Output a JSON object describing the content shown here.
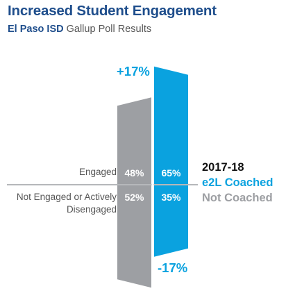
{
  "title": "Increased Student Engagement",
  "subtitle_bold": "El Paso ISD",
  "subtitle_rest": " Gallup Poll Results",
  "colors": {
    "title": "#1f4e8c",
    "coached": "#0aa2df",
    "not_coached": "#9d9fa3",
    "label_text": "#555555",
    "legend_year": "#111111"
  },
  "legend": {
    "year": "2017-18",
    "coached": "e2L Coached",
    "not_coached": "Not Coached"
  },
  "deltas": {
    "top": "+17%",
    "bottom": "-17%"
  },
  "chart_data": {
    "type": "bar",
    "title": "Increased Student Engagement",
    "subtitle": "El Paso ISD Gallup Poll Results",
    "categories": [
      "Engaged",
      "Not Engaged or Actively Disengaged"
    ],
    "series": [
      {
        "name": "Not Coached",
        "values": [
          48,
          52
        ],
        "labels": [
          "48%",
          "52%"
        ],
        "color": "#9d9fa3"
      },
      {
        "name": "e2L Coached",
        "values": [
          65,
          35
        ],
        "labels": [
          "65%",
          "35%"
        ],
        "color": "#0aa2df"
      }
    ],
    "ylim": [
      0,
      100
    ],
    "unit": "%",
    "annotations": [
      "+17%",
      "-17%"
    ]
  }
}
